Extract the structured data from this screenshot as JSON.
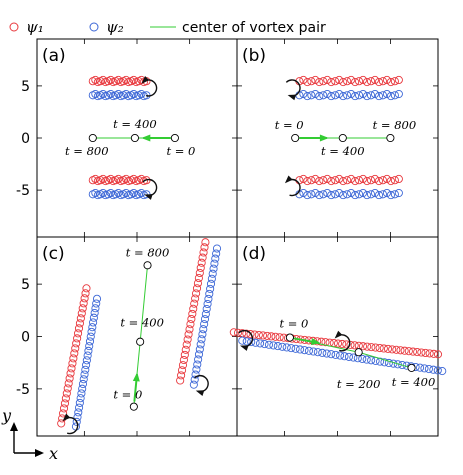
{
  "chart_data": {
    "type": "scatter",
    "legend": {
      "placement": "top",
      "entries": [
        {
          "label": "ψ₁",
          "marker": "circle",
          "color": "#e8383d"
        },
        {
          "label": "ψ₂",
          "marker": "circle",
          "color": "#3b66d6"
        },
        {
          "label": "center of vortex pair",
          "marker": "line",
          "color": "#33cc33"
        }
      ]
    },
    "axes": {
      "xlabel": "x",
      "ylabel": "y",
      "ylim": [
        -9.5,
        9.5
      ],
      "xlim": [
        -9.5,
        9.5
      ],
      "yticks": [
        "5",
        "0",
        "-5"
      ]
    },
    "colors": {
      "psi1": "#e8383d",
      "psi2": "#3b66d6",
      "center": "#33cc33",
      "arrow": "#111111"
    },
    "panels": [
      {
        "label": "(a)",
        "psi1": [
          {
            "y": 5.45,
            "x_from": -4.2,
            "x_to": 0.9,
            "n": 22
          },
          {
            "y": -4.05,
            "x_from": -4.2,
            "x_to": 0.9,
            "n": 22
          }
        ],
        "psi2": [
          {
            "y": 4.1,
            "x_from": -4.2,
            "x_to": 0.9,
            "n": 22
          },
          {
            "y": -5.4,
            "x_from": -4.2,
            "x_to": 0.9,
            "n": 22
          }
        ],
        "vortex_arrows": [
          {
            "cx": 1.1,
            "cy": 4.8,
            "ccw": false
          },
          {
            "cx": 1.1,
            "cy": -4.75,
            "ccw": true
          }
        ],
        "center_path": [
          {
            "x": -4.2,
            "y": 0.0,
            "t": "t = 800"
          },
          {
            "x": -0.2,
            "y": 0.0,
            "t": "t = 400"
          },
          {
            "x": 3.6,
            "y": 0.0,
            "t": "t = 0"
          }
        ],
        "green_arrow": {
          "x1": 3.2,
          "y1": 0.0,
          "x2": 0.6,
          "y2": 0.0
        }
      },
      {
        "label": "(b)",
        "psi1": [
          {
            "y": 5.45,
            "x_from": -3.6,
            "x_to": 5.8,
            "n": 26
          },
          {
            "y": -4.05,
            "x_from": -3.6,
            "x_to": 5.8,
            "n": 26
          }
        ],
        "psi2": [
          {
            "y": 4.1,
            "x_from": -3.6,
            "x_to": 5.8,
            "n": 26
          },
          {
            "y": -5.4,
            "x_from": -3.6,
            "x_to": 5.8,
            "n": 26
          }
        ],
        "vortex_arrows": [
          {
            "cx": -4.3,
            "cy": 4.8,
            "ccw": true
          },
          {
            "cx": -4.3,
            "cy": -4.75,
            "ccw": false
          }
        ],
        "center_path": [
          {
            "x": -4.0,
            "y": 0.0,
            "t": "t = 0"
          },
          {
            "x": 0.5,
            "y": 0.0,
            "t": "t = 400"
          },
          {
            "x": 5.0,
            "y": 0.0,
            "t": "t = 800"
          }
        ],
        "green_arrow": {
          "x1": -3.6,
          "y1": 0.0,
          "x2": -1.0,
          "y2": 0.0
        }
      },
      {
        "label": "(c)",
        "psi1": [
          {
            "x1": -7.2,
            "y1": -8.3,
            "x2": -4.8,
            "y2": 4.6,
            "n": 28
          },
          {
            "x1": 4.1,
            "y1": -4.2,
            "x2": 6.5,
            "y2": 9.0,
            "n": 28
          }
        ],
        "psi2": [
          {
            "x1": -5.8,
            "y1": -8.6,
            "x2": -3.8,
            "y2": 3.6,
            "n": 28
          },
          {
            "x1": 5.4,
            "y1": -4.6,
            "x2": 7.6,
            "y2": 8.4,
            "n": 28
          }
        ],
        "vortex_arrows": [
          {
            "cx": -6.4,
            "cy": -8.5,
            "ccw": false
          },
          {
            "cx": 6.0,
            "cy": -4.5,
            "ccw": true
          }
        ],
        "center_path": [
          {
            "x": -0.3,
            "y": -6.7,
            "t": "t = 0"
          },
          {
            "x": 0.3,
            "y": -0.5,
            "t": "t = 400"
          },
          {
            "x": 1.0,
            "y": 6.8,
            "t": "t = 800"
          }
        ],
        "green_arrow": {
          "x1": -0.25,
          "y1": -6.2,
          "x2": 0.0,
          "y2": -3.6
        }
      },
      {
        "label": "(d)",
        "psi1": [
          {
            "x1": -9.8,
            "y1": 0.4,
            "x2": 9.5,
            "y2": -1.7,
            "n": 50
          }
        ],
        "psi2": [
          {
            "x1": -9.0,
            "y1": -0.4,
            "x2": 9.9,
            "y2": -3.3,
            "n": 46
          }
        ],
        "vortex_arrows": [
          {
            "cx": -8.8,
            "cy": -0.2,
            "ccw": true
          },
          {
            "cx": 0.4,
            "cy": -0.6,
            "ccw": false
          }
        ],
        "center_path": [
          {
            "x": -4.5,
            "y": -0.1,
            "t": "t = 0"
          },
          {
            "x": 2.0,
            "y": -1.5,
            "t": "t = 200"
          },
          {
            "x": 7.0,
            "y": -3.0,
            "t": "t = 400"
          }
        ],
        "green_arrow": {
          "x1": -4.3,
          "y1": -0.15,
          "x2": -1.8,
          "y2": -0.6
        }
      }
    ]
  }
}
